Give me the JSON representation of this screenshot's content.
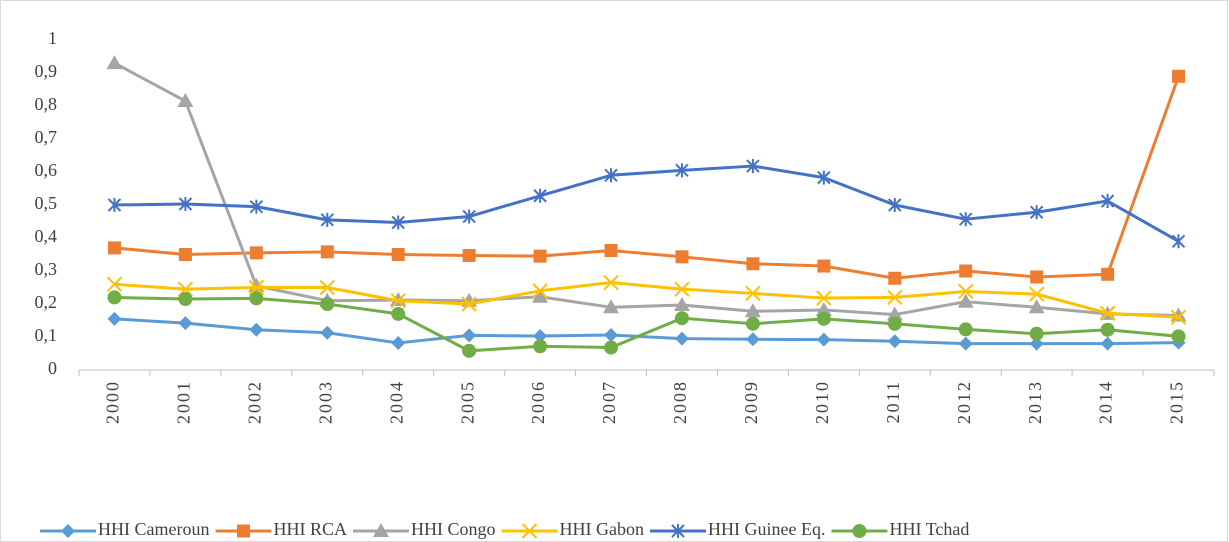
{
  "chart_data": {
    "type": "line",
    "categories": [
      "2000",
      "2001",
      "2002",
      "2003",
      "2004",
      "2005",
      "2006",
      "2007",
      "2008",
      "2009",
      "2010",
      "2011",
      "2012",
      "2013",
      "2014",
      "2015"
    ],
    "series": [
      {
        "name": "HHI Cameroun",
        "color": "#5b9bd5",
        "marker": "diamond",
        "values": [
          0.155,
          0.142,
          0.122,
          0.113,
          0.082,
          0.105,
          0.103,
          0.106,
          0.095,
          0.093,
          0.092,
          0.087,
          0.08,
          0.08,
          0.08,
          0.083
        ]
      },
      {
        "name": "HHI RCA",
        "color": "#ed7d31",
        "marker": "square",
        "values": [
          0.37,
          0.35,
          0.355,
          0.358,
          0.35,
          0.347,
          0.345,
          0.362,
          0.343,
          0.322,
          0.315,
          0.278,
          0.3,
          0.282,
          0.29,
          0.89
        ]
      },
      {
        "name": "HHI Congo",
        "color": "#a5a5a5",
        "marker": "triangle",
        "values": [
          0.93,
          0.815,
          0.255,
          0.21,
          0.212,
          0.21,
          0.222,
          0.19,
          0.197,
          0.178,
          0.182,
          0.168,
          0.207,
          0.19,
          0.17,
          0.165
        ]
      },
      {
        "name": "HHI Gabon",
        "color": "#ffc000",
        "marker": "x",
        "values": [
          0.26,
          0.245,
          0.25,
          0.25,
          0.21,
          0.2,
          0.24,
          0.265,
          0.245,
          0.232,
          0.218,
          0.22,
          0.238,
          0.23,
          0.172,
          0.16
        ]
      },
      {
        "name": "HHI Guinee Eq.",
        "color": "#4472c4",
        "marker": "star",
        "values": [
          0.5,
          0.503,
          0.495,
          0.455,
          0.447,
          0.465,
          0.528,
          0.59,
          0.605,
          0.618,
          0.583,
          0.5,
          0.457,
          0.478,
          0.512,
          0.39
        ]
      },
      {
        "name": "HHI Tchad",
        "color": "#70ad47",
        "marker": "circle",
        "values": [
          0.22,
          0.215,
          0.217,
          0.2,
          0.17,
          0.058,
          0.072,
          0.068,
          0.157,
          0.14,
          0.155,
          0.14,
          0.123,
          0.11,
          0.122,
          0.102
        ]
      }
    ],
    "ylim": [
      0,
      1
    ],
    "yticks": [
      0,
      {
        "value": 0.1,
        "label": "0,1"
      },
      {
        "value": 0.2,
        "label": "0,2"
      },
      {
        "value": 0.3,
        "label": "0,3"
      },
      {
        "value": 0.4,
        "label": "0,4"
      },
      {
        "value": 0.5,
        "label": "0,5"
      },
      {
        "value": 0.6,
        "label": "0,6"
      },
      {
        "value": 0.7,
        "label": "0,7"
      },
      {
        "value": 0.8,
        "label": "0,8"
      },
      {
        "value": 0.9,
        "label": "0,9"
      },
      1
    ],
    "grid": false,
    "legend": "bottom"
  }
}
